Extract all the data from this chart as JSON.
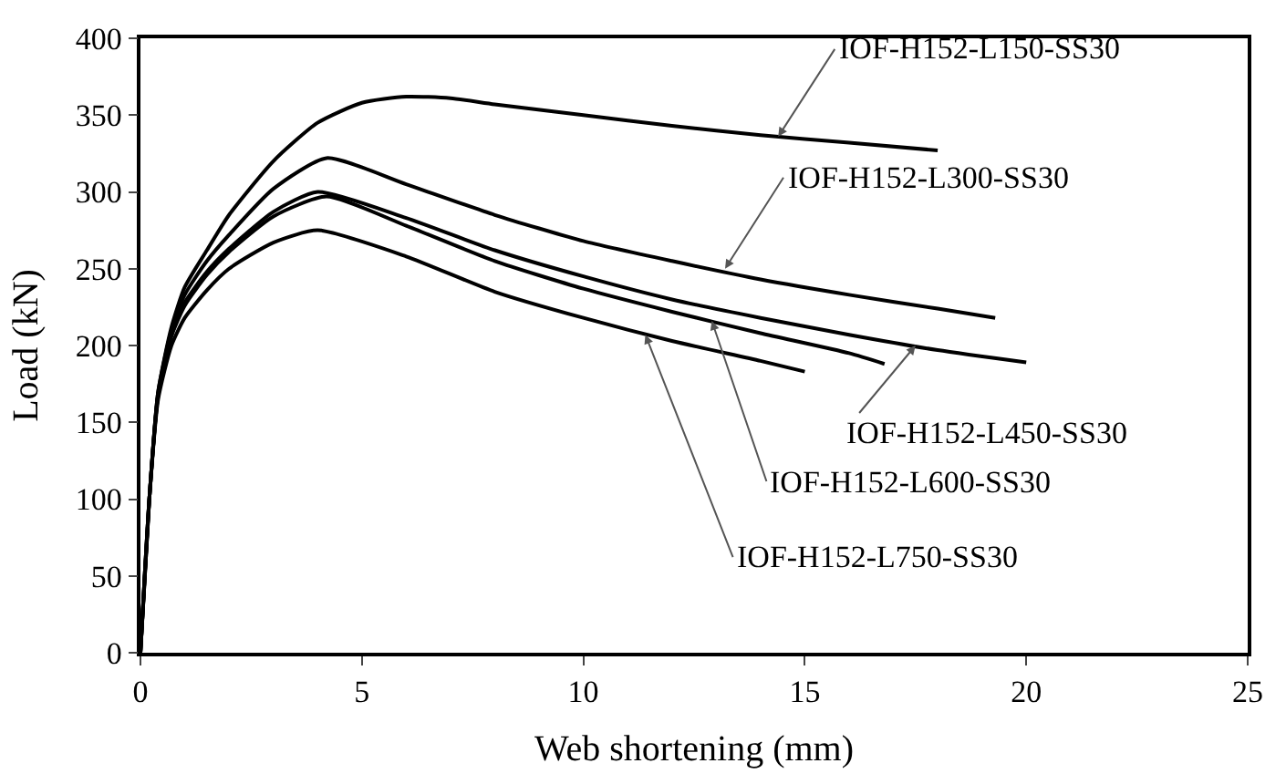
{
  "chart_data": {
    "type": "line",
    "xlabel": "Web shortening (mm)",
    "ylabel": "Load (kN)",
    "xlim": [
      0,
      25
    ],
    "ylim": [
      0,
      400
    ],
    "xticks": [
      0,
      5,
      10,
      15,
      20,
      25
    ],
    "yticks": [
      0,
      50,
      100,
      150,
      200,
      250,
      300,
      350,
      400
    ],
    "marker": "none",
    "line_style": "solid",
    "series": [
      {
        "color": "#000000",
        "x": [
          0,
          0.2,
          0.4,
          0.7,
          1,
          1.5,
          2,
          3,
          4,
          5,
          6,
          7,
          8,
          10,
          12,
          14,
          16,
          18
        ],
        "values": [
          0,
          100,
          170,
          212,
          238,
          262,
          285,
          320,
          345,
          358,
          362,
          361,
          357,
          350,
          343,
          337,
          332,
          327
        ]
      },
      {
        "color": "#000000",
        "x": [
          0,
          0.2,
          0.4,
          0.7,
          1,
          1.5,
          2,
          3,
          4.2,
          6,
          8,
          10,
          12,
          14,
          16,
          18,
          19.3
        ],
        "values": [
          0,
          100,
          170,
          210,
          233,
          255,
          272,
          302,
          322,
          305,
          285,
          268,
          255,
          243,
          233,
          224,
          218
        ]
      },
      {
        "color": "#000000",
        "x": [
          0,
          0.2,
          0.4,
          0.7,
          1,
          1.5,
          2,
          3,
          4,
          6,
          8,
          10,
          12,
          14,
          16,
          18,
          20
        ],
        "values": [
          0,
          100,
          168,
          207,
          228,
          248,
          263,
          287,
          300,
          283,
          262,
          245,
          230,
          218,
          207,
          197,
          189
        ]
      },
      {
        "color": "#000000",
        "x": [
          0,
          0.2,
          0.4,
          0.7,
          1,
          1.5,
          2,
          3,
          4.2,
          6,
          8,
          10,
          12,
          14,
          16,
          16.8
        ],
        "values": [
          0,
          100,
          168,
          206,
          226,
          246,
          261,
          284,
          297,
          278,
          255,
          237,
          222,
          208,
          195,
          188
        ]
      },
      {
        "color": "#000000",
        "x": [
          0,
          0.2,
          0.4,
          0.7,
          1,
          1.5,
          2,
          3,
          4,
          6,
          8,
          10,
          12,
          14,
          15
        ],
        "values": [
          0,
          100,
          165,
          200,
          218,
          236,
          250,
          267,
          275,
          258,
          235,
          218,
          203,
          190,
          183
        ]
      }
    ],
    "annotations": [
      {
        "text": "IOF-H152-L150-SS30",
        "x": 14.4,
        "y": 336
      },
      {
        "text": "IOF-H152-L300-SS30",
        "x": 13.2,
        "y": 250
      },
      {
        "text": "IOF-H152-L450-SS30",
        "x": 17.5,
        "y": 200
      },
      {
        "text": "IOF-H152-L600-SS30",
        "x": 12.9,
        "y": 216
      },
      {
        "text": "IOF-H152-L750-SS30",
        "x": 11.4,
        "y": 207
      }
    ]
  }
}
